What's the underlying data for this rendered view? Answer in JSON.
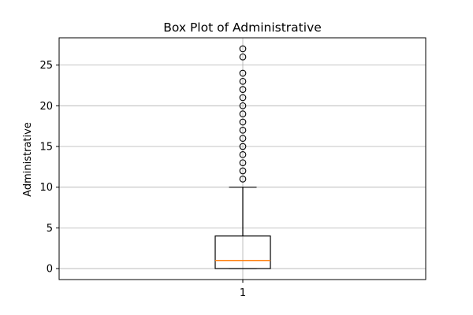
{
  "chart_data": {
    "type": "box",
    "title": "Box Plot of Administrative",
    "xlabel": "",
    "ylabel": "Administrative",
    "categories": [
      "1"
    ],
    "yticks": [
      0,
      5,
      10,
      15,
      20,
      25
    ],
    "ylim": [
      -1.35,
      28.35
    ],
    "grid": true,
    "box": {
      "q1": 0,
      "median": 1,
      "q3": 4,
      "whisker_low": 0,
      "whisker_high": 10
    },
    "outliers": [
      11,
      12,
      13,
      14,
      15,
      16,
      17,
      18,
      19,
      20,
      21,
      22,
      23,
      24,
      26,
      27
    ],
    "colors": {
      "box": "#000000",
      "median": "#ff7f0e",
      "grid": "#b0b0b0",
      "outlier": "#000000"
    }
  }
}
